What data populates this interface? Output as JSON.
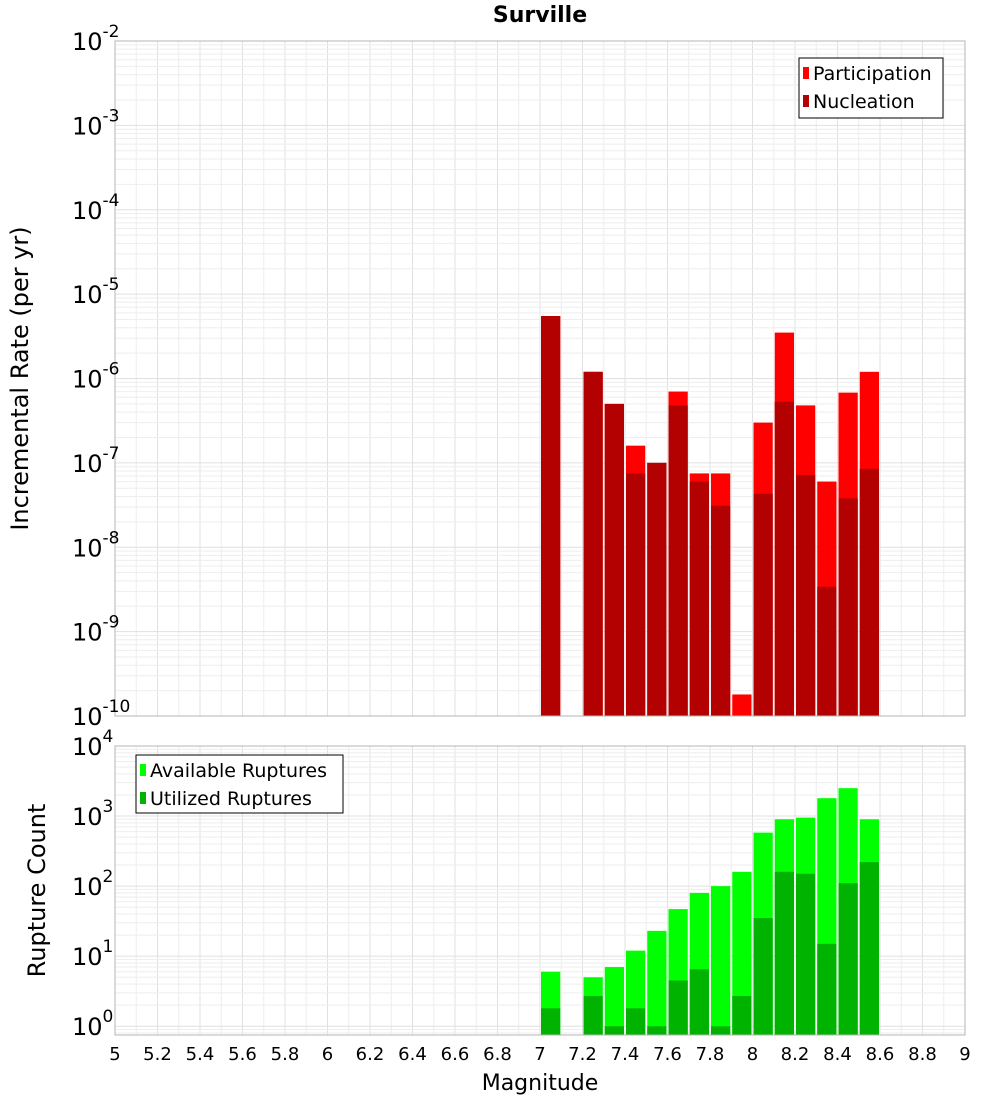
{
  "chart_data": [
    {
      "type": "bar",
      "title": "Surville",
      "xlabel": "",
      "ylabel": "Incremental Rate (per yr)",
      "yscale": "log",
      "ylim": [
        1e-10,
        0.01
      ],
      "xlim": [
        5,
        9
      ],
      "bin_width": 0.1,
      "y_tick_bases": [
        "10",
        "10",
        "10",
        "10",
        "10",
        "10",
        "10",
        "10",
        "10"
      ],
      "y_tick_exponents": [
        "-10",
        "-9",
        "-8",
        "-7",
        "-6",
        "-5",
        "-4",
        "-3",
        "-2"
      ],
      "legend_position": "top-right",
      "x": [
        7.05,
        7.15,
        7.25,
        7.35,
        7.45,
        7.55,
        7.65,
        7.75,
        7.85,
        7.95,
        8.05,
        8.15,
        8.25,
        8.35,
        8.45,
        8.55
      ],
      "series": [
        {
          "name": "Participation",
          "color": "#ff0000",
          "values": [
            5.5e-06,
            null,
            1.2e-06,
            5e-07,
            1.6e-07,
            1e-07,
            7e-07,
            7.5e-08,
            7.5e-08,
            1.8e-10,
            3e-07,
            3.5e-06,
            4.8e-07,
            6e-08,
            6.8e-07,
            1.2e-06
          ]
        },
        {
          "name": "Nucleation",
          "color": "#b30000",
          "values": [
            5.5e-06,
            null,
            1.2e-06,
            5e-07,
            7.5e-08,
            1e-07,
            4.8e-07,
            6e-08,
            3.1e-08,
            null,
            4.3e-08,
            5.3e-07,
            7.2e-08,
            3.4e-09,
            3.8e-08,
            8.5e-08
          ]
        }
      ]
    },
    {
      "type": "bar",
      "title": "",
      "xlabel": "Magnitude",
      "ylabel": "Rupture Count",
      "yscale": "log",
      "ylim": [
        0.75,
        10000
      ],
      "xlim": [
        5,
        9
      ],
      "bin_width": 0.1,
      "y_tick_bases": [
        "10",
        "10",
        "10",
        "10",
        "10"
      ],
      "y_tick_exponents": [
        "0",
        "1",
        "2",
        "3",
        "4"
      ],
      "x_ticks": [
        "5",
        "5.2",
        "5.4",
        "5.6",
        "5.8",
        "6",
        "6.2",
        "6.4",
        "6.6",
        "6.8",
        "7",
        "7.2",
        "7.4",
        "7.6",
        "7.8",
        "8",
        "8.2",
        "8.4",
        "8.6",
        "8.8",
        "9"
      ],
      "legend_position": "top-left",
      "x": [
        7.05,
        7.15,
        7.25,
        7.35,
        7.45,
        7.55,
        7.65,
        7.75,
        7.85,
        7.95,
        8.05,
        8.15,
        8.25,
        8.35,
        8.45,
        8.55
      ],
      "series": [
        {
          "name": "Available Ruptures",
          "color": "#00ff00",
          "values": [
            6,
            null,
            5,
            7,
            12,
            23,
            47,
            80,
            100,
            160,
            580,
            900,
            950,
            1800,
            2500,
            900
          ]
        },
        {
          "name": "Utilized Ruptures",
          "color": "#00b300",
          "values": [
            1.8,
            null,
            2.7,
            1,
            1.8,
            1,
            4.5,
            6.5,
            1,
            2.7,
            35,
            160,
            150,
            15,
            110,
            220
          ]
        }
      ]
    }
  ]
}
